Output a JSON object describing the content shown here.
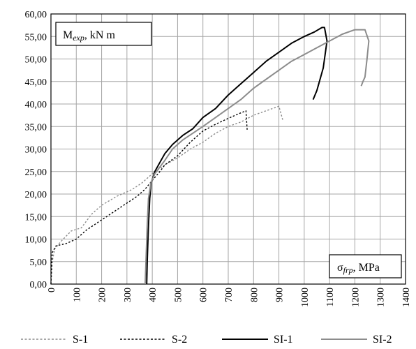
{
  "chart_data": {
    "type": "line",
    "x_range": [
      0,
      1400
    ],
    "y_range": [
      0,
      60
    ],
    "x_ticks": [
      "0",
      "100",
      "200",
      "300",
      "400",
      "500",
      "600",
      "700",
      "800",
      "900",
      "1000",
      "1100",
      "1200",
      "1300",
      "1400"
    ],
    "y_ticks": [
      "0,00",
      "5,00",
      "10,00",
      "15,00",
      "20,00",
      "25,00",
      "30,00",
      "35,00",
      "40,00",
      "45,00",
      "50,00",
      "55,00",
      "60,00"
    ],
    "grid": true,
    "y_label": {
      "base": "M",
      "sub": "exp",
      "rest": ", kN m"
    },
    "x_label": {
      "base": "σ",
      "sub": "frp",
      "rest": ", MPa"
    },
    "legend_position": "bottom",
    "series": [
      {
        "name": "S-1",
        "color": "#8c8c8c",
        "style": "dashed",
        "points": [
          [
            0,
            0
          ],
          [
            5,
            5
          ],
          [
            15,
            7.8
          ],
          [
            40,
            9.5
          ],
          [
            80,
            11.8
          ],
          [
            120,
            12.5
          ],
          [
            160,
            15.5
          ],
          [
            200,
            17.5
          ],
          [
            260,
            19.5
          ],
          [
            320,
            21
          ],
          [
            360,
            22.5
          ],
          [
            400,
            24.5
          ],
          [
            450,
            26.5
          ],
          [
            500,
            28
          ],
          [
            550,
            30
          ],
          [
            600,
            31.5
          ],
          [
            650,
            33.5
          ],
          [
            700,
            35
          ],
          [
            750,
            36
          ],
          [
            800,
            37.5
          ],
          [
            850,
            38.5
          ],
          [
            900,
            39.5
          ],
          [
            915,
            36.5
          ]
        ]
      },
      {
        "name": "S-2",
        "color": "#000000",
        "style": "dashed",
        "points": [
          [
            0,
            0
          ],
          [
            5,
            7
          ],
          [
            20,
            8.5
          ],
          [
            60,
            9
          ],
          [
            100,
            10
          ],
          [
            140,
            12
          ],
          [
            180,
            13.5
          ],
          [
            220,
            15
          ],
          [
            260,
            16.5
          ],
          [
            300,
            18
          ],
          [
            340,
            19.5
          ],
          [
            370,
            21
          ],
          [
            400,
            23
          ],
          [
            430,
            25
          ],
          [
            450,
            26.5
          ],
          [
            500,
            28.5
          ],
          [
            550,
            31.5
          ],
          [
            600,
            34
          ],
          [
            650,
            35.5
          ],
          [
            700,
            36.8
          ],
          [
            740,
            37.8
          ],
          [
            770,
            38.5
          ],
          [
            775,
            34
          ]
        ]
      },
      {
        "name": "SI-1",
        "color": "#000000",
        "style": "solid",
        "points": [
          [
            378,
            0
          ],
          [
            380,
            5
          ],
          [
            385,
            13
          ],
          [
            390,
            19
          ],
          [
            396,
            22.5
          ],
          [
            410,
            25
          ],
          [
            430,
            27
          ],
          [
            450,
            29
          ],
          [
            480,
            31
          ],
          [
            520,
            33
          ],
          [
            560,
            34.5
          ],
          [
            600,
            37
          ],
          [
            650,
            39
          ],
          [
            700,
            42
          ],
          [
            750,
            44.5
          ],
          [
            800,
            47
          ],
          [
            850,
            49.5
          ],
          [
            900,
            51.5
          ],
          [
            950,
            53.5
          ],
          [
            1000,
            55
          ],
          [
            1040,
            56
          ],
          [
            1070,
            57
          ],
          [
            1080,
            57
          ],
          [
            1090,
            54
          ],
          [
            1075,
            48
          ],
          [
            1050,
            43
          ],
          [
            1035,
            41
          ]
        ]
      },
      {
        "name": "SI-2",
        "color": "#8c8c8c",
        "style": "solid",
        "points": [
          [
            372,
            0
          ],
          [
            375,
            5
          ],
          [
            380,
            13
          ],
          [
            385,
            19
          ],
          [
            395,
            22.5
          ],
          [
            410,
            24.5
          ],
          [
            430,
            26
          ],
          [
            450,
            27.5
          ],
          [
            480,
            30
          ],
          [
            520,
            32
          ],
          [
            560,
            33.5
          ],
          [
            600,
            35
          ],
          [
            650,
            37
          ],
          [
            700,
            39
          ],
          [
            750,
            41
          ],
          [
            800,
            43.5
          ],
          [
            850,
            45.5
          ],
          [
            900,
            47.5
          ],
          [
            950,
            49.5
          ],
          [
            1000,
            51
          ],
          [
            1050,
            52.5
          ],
          [
            1100,
            54
          ],
          [
            1150,
            55.5
          ],
          [
            1200,
            56.5
          ],
          [
            1240,
            56.5
          ],
          [
            1255,
            54
          ],
          [
            1248,
            50
          ],
          [
            1240,
            46
          ],
          [
            1232,
            45
          ],
          [
            1225,
            44
          ]
        ]
      }
    ]
  }
}
